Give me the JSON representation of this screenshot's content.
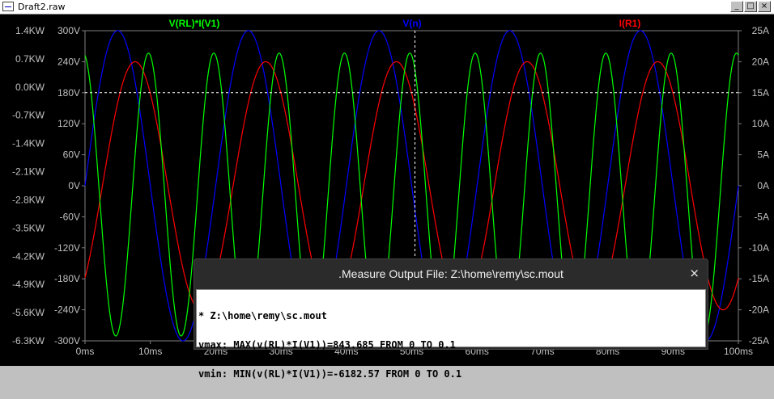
{
  "window": {
    "title": "Draft2.raw",
    "buttons": {
      "minimize": "_",
      "maximize": "□",
      "close": "×"
    }
  },
  "colors": {
    "background": "#000000",
    "grid": "#1e1e1e",
    "axis_text": "#c0c0c0",
    "power": "#00ff00",
    "voltage": "#0000ff",
    "current": "#ff0000",
    "cursor": "#ffffff"
  },
  "traces": {
    "power": {
      "label": "V(RL)*I(V1)",
      "color": "#00ff00"
    },
    "voltage": {
      "label": "V(n)",
      "color": "#0000ff"
    },
    "current": {
      "label": "I(R1)",
      "color": "#ff0000"
    }
  },
  "chart_data": {
    "type": "line",
    "x": {
      "unit": "ms",
      "range": [
        0,
        100
      ],
      "tick_labels": [
        "0ms",
        "10ms",
        "20ms",
        "30ms",
        "40ms",
        "50ms",
        "60ms",
        "70ms",
        "80ms",
        "90ms",
        "100ms"
      ]
    },
    "y_left_power": {
      "range": [
        -6.3,
        1.4
      ],
      "unit": "KW",
      "tick_labels": [
        "1.4KW",
        "0.7KW",
        "0.0KW",
        "-0.7KW",
        "-1.4KW",
        "-2.1KW",
        "-2.8KW",
        "-3.5KW",
        "-4.2KW",
        "-4.9KW",
        "-5.6KW",
        "-6.3KW"
      ]
    },
    "y_left_voltage": {
      "range": [
        -300,
        300
      ],
      "unit": "V",
      "tick_labels": [
        "300V",
        "240V",
        "180V",
        "120V",
        "60V",
        "0V",
        "-60V",
        "-120V",
        "-180V",
        "-240V",
        "-300V"
      ]
    },
    "y_right_current": {
      "range": [
        -25,
        25
      ],
      "unit": "A",
      "tick_labels": [
        "25A",
        "20A",
        "15A",
        "10A",
        "5A",
        "0A",
        "-5A",
        "-10A",
        "-15A",
        "-20A",
        "-25A"
      ]
    },
    "cursor": {
      "x_ms": 50.5,
      "y_V": 180
    },
    "series": [
      {
        "name": "V(n)",
        "kind": "sine",
        "amplitude_V": 300,
        "frequency_Hz": 50,
        "phase_deg": 0
      },
      {
        "name": "I(R1)",
        "kind": "sine",
        "amplitude_A": 20,
        "frequency_Hz": 50,
        "phase_deg": -48
      },
      {
        "name": "V(RL)*I(V1)",
        "kind": "power",
        "max_kW": 0.844,
        "min_kW": -6.18,
        "frequency_Hz": 100
      }
    ],
    "grid": true
  },
  "measure_dialog": {
    "title": ".Measure Output File: Z:\\home\\remy\\sc.mout",
    "close": "×",
    "lines": [
      "* Z:\\home\\remy\\sc.mout",
      "vmax: MAX(v(RL)*I(V1))=843.685 FROM 0 TO 0.1",
      "vmin: MIN(v(RL)*I(V1))=-6182.57 FROM 0 TO 0.1"
    ]
  }
}
